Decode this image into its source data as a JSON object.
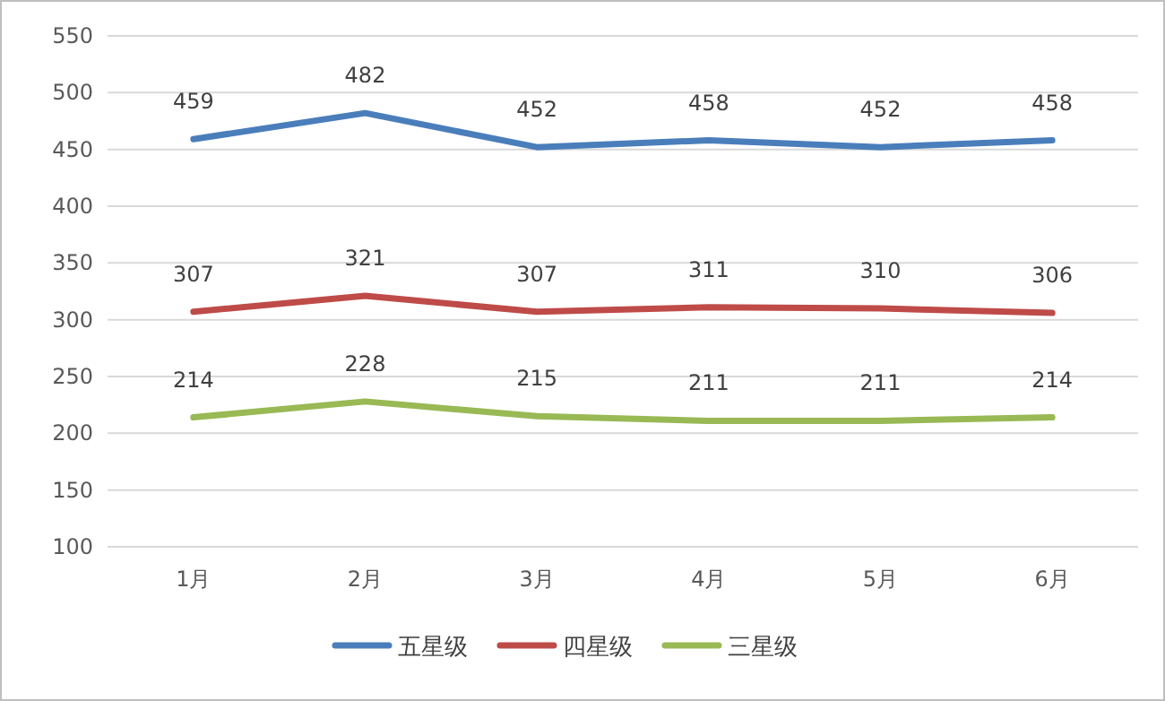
{
  "chart_data": {
    "type": "line",
    "categories": [
      "1月",
      "2月",
      "3月",
      "4月",
      "5月",
      "6月"
    ],
    "series": [
      {
        "name": "五星级",
        "color": "#4a7ebb",
        "values": [
          459,
          482,
          452,
          458,
          452,
          458
        ]
      },
      {
        "name": "四星级",
        "color": "#be4b48",
        "values": [
          307,
          321,
          307,
          311,
          310,
          306
        ]
      },
      {
        "name": "三星级",
        "color": "#98b954",
        "values": [
          214,
          228,
          215,
          211,
          211,
          214
        ]
      }
    ],
    "ylim": [
      100,
      550
    ],
    "yticks": [
      100,
      150,
      200,
      250,
      300,
      350,
      400,
      450,
      500,
      550
    ],
    "grid": "y",
    "legend": "bottom",
    "data_labels": true
  }
}
